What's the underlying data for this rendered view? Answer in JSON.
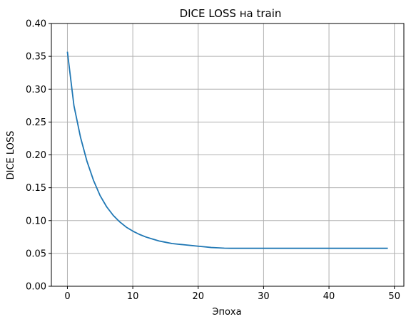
{
  "chart_data": {
    "type": "line",
    "title": "DICE LOSS на train",
    "xlabel": "Эпоха",
    "ylabel": "DICE LOSS",
    "xlim": [
      -2.45,
      51.45
    ],
    "ylim": [
      0,
      0.4
    ],
    "xticks": [
      0,
      10,
      20,
      30,
      40,
      50
    ],
    "yticks": [
      0.0,
      0.05,
      0.1,
      0.15,
      0.2,
      0.25,
      0.3,
      0.35,
      0.4
    ],
    "xtick_labels": [
      "0",
      "10",
      "20",
      "30",
      "40",
      "50"
    ],
    "ytick_labels": [
      "0.00",
      "0.05",
      "0.10",
      "0.15",
      "0.20",
      "0.25",
      "0.30",
      "0.35",
      "0.40"
    ],
    "grid": true,
    "series": [
      {
        "color": "#1f77b4",
        "x": [
          0,
          1,
          2,
          3,
          4,
          5,
          6,
          7,
          8,
          9,
          10,
          11,
          12,
          13,
          14,
          15,
          16,
          17,
          18,
          19,
          20,
          21,
          22,
          23,
          24,
          25,
          26,
          27,
          28,
          29,
          30,
          31,
          32,
          33,
          34,
          35,
          36,
          37,
          38,
          39,
          40,
          41,
          42,
          43,
          44,
          45,
          46,
          47,
          48,
          49
        ],
        "y": [
          0.357,
          0.275,
          0.227,
          0.19,
          0.161,
          0.138,
          0.121,
          0.108,
          0.098,
          0.09,
          0.084,
          0.079,
          0.075,
          0.072,
          0.069,
          0.067,
          0.065,
          0.064,
          0.063,
          0.062,
          0.061,
          0.06,
          0.059,
          0.0585,
          0.058,
          0.0578,
          0.0578,
          0.0578,
          0.0578,
          0.0578,
          0.0578,
          0.0578,
          0.0578,
          0.0578,
          0.0578,
          0.0578,
          0.0578,
          0.0578,
          0.0578,
          0.0578,
          0.0578,
          0.0578,
          0.0578,
          0.0578,
          0.0578,
          0.0578,
          0.0578,
          0.0578,
          0.0578,
          0.0578
        ]
      }
    ]
  }
}
